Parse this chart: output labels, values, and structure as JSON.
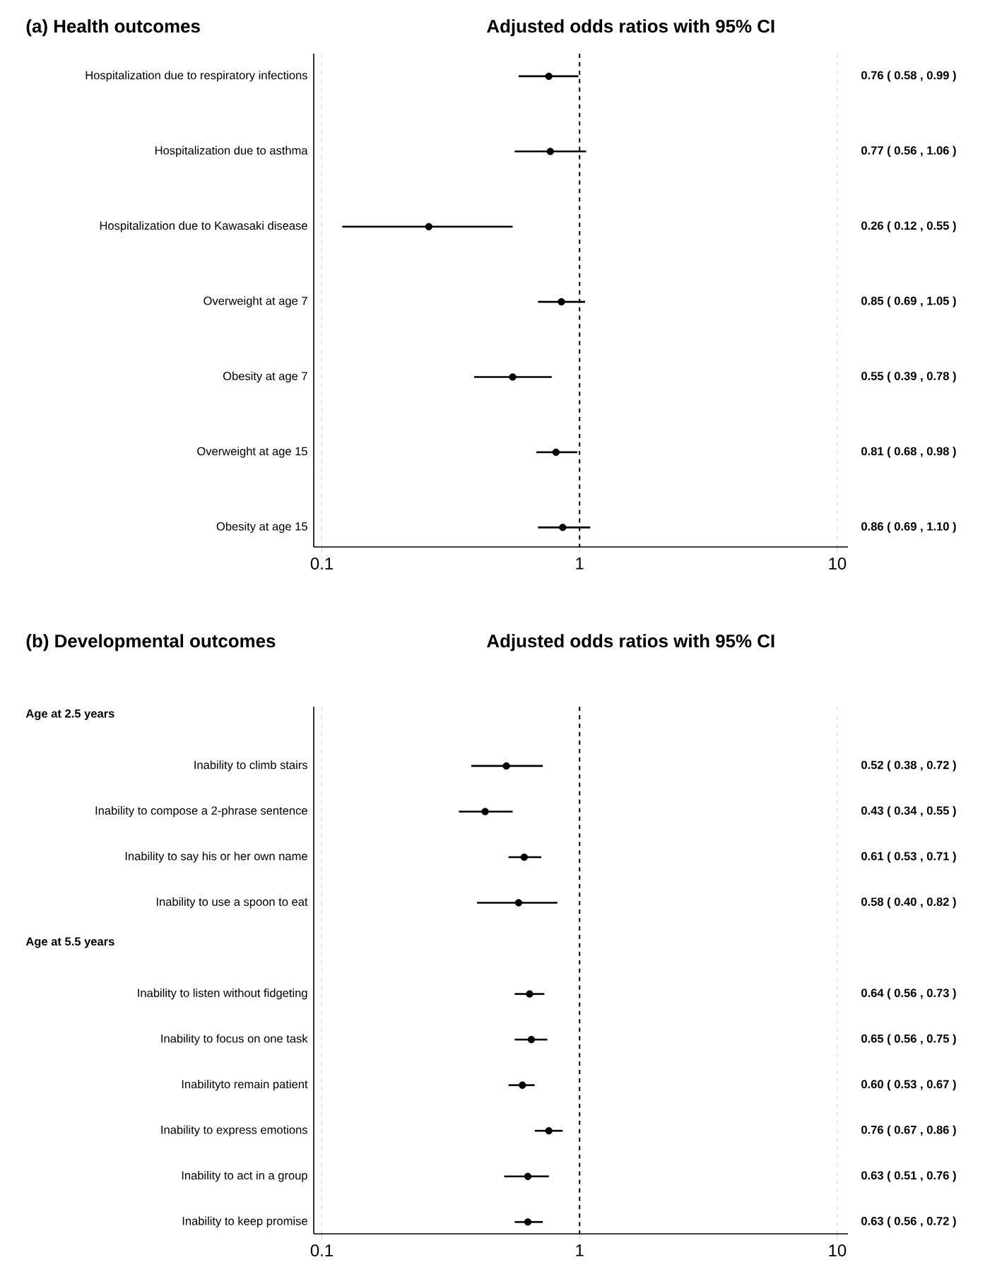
{
  "chart_data": [
    {
      "type": "scatter",
      "orientation": "horizontal",
      "title": "(a) Health outcomes",
      "subtitle": "Adjusted odds ratios with  95% CI",
      "log": "x",
      "xlim": [
        0.093,
        11
      ],
      "xticks": [
        0.1,
        1,
        10
      ],
      "grid": "x",
      "marker": "circle",
      "color": "#000000",
      "ref_lines": [
        {
          "axis": "x",
          "value": 1,
          "line_style": "dashed",
          "color": "#000000"
        }
      ],
      "categories": [
        "Hospitalization due to respiratory infections",
        "Hospitalization due to asthma",
        "Hospitalization due to Kawasaki disease",
        "Overweight at age 7",
        "Obesity at age 7",
        "Overweight at age 15",
        "Obesity at age 15"
      ],
      "values": [
        0.76,
        0.77,
        0.26,
        0.85,
        0.55,
        0.81,
        0.86
      ],
      "errors": [
        [
          0.58,
          0.99
        ],
        [
          0.56,
          1.06
        ],
        [
          0.12,
          0.55
        ],
        [
          0.69,
          1.05
        ],
        [
          0.39,
          0.78
        ],
        [
          0.68,
          0.98
        ],
        [
          0.69,
          1.1
        ]
      ],
      "value_labels": [
        "0.76 ( 0.58 , 0.99 )",
        "0.77 ( 0.56 , 1.06 )",
        "0.26 ( 0.12 , 0.55 )",
        "0.85 ( 0.69 , 1.05 )",
        "0.55 ( 0.39 , 0.78 )",
        "0.81 ( 0.68 , 0.98 )",
        "0.86 ( 0.69 , 1.10 )"
      ]
    },
    {
      "type": "scatter",
      "orientation": "horizontal",
      "title": "(b) Developmental outcomes",
      "subtitle": "Adjusted odds ratios with  95% CI",
      "log": "x",
      "xlim": [
        0.093,
        11
      ],
      "xticks": [
        0.1,
        1,
        10
      ],
      "grid": "x",
      "marker": "circle",
      "color": "#000000",
      "ref_lines": [
        {
          "axis": "x",
          "value": 1,
          "line_style": "dashed",
          "color": "#000000"
        }
      ],
      "annotations": [
        "Age at 2.5 years",
        "Age at 5.5 years"
      ],
      "categories": [
        null,
        "Inability to climb stairs",
        "Inability to compose a 2-phrase sentence",
        "Inability to say his or her own name",
        "Inability to use a spoon to eat",
        null,
        "Inability to listen without fidgeting",
        "Inability to focus on one task",
        "Inabilityto remain patient",
        "Inability to express emotions",
        "Inability to act in a group",
        "Inability to keep promise"
      ],
      "values": [
        null,
        0.52,
        0.43,
        0.61,
        0.58,
        null,
        0.64,
        0.65,
        0.6,
        0.76,
        0.63,
        0.63
      ],
      "errors": [
        null,
        [
          0.38,
          0.72
        ],
        [
          0.34,
          0.55
        ],
        [
          0.53,
          0.71
        ],
        [
          0.4,
          0.82
        ],
        null,
        [
          0.56,
          0.73
        ],
        [
          0.56,
          0.75
        ],
        [
          0.53,
          0.67
        ],
        [
          0.67,
          0.86
        ],
        [
          0.51,
          0.76
        ],
        [
          0.56,
          0.72
        ]
      ],
      "value_labels": [
        null,
        "0.52 ( 0.38 , 0.72 )",
        "0.43 ( 0.34 , 0.55 )",
        "0.61 ( 0.53 , 0.71 )",
        "0.58 ( 0.40 , 0.82 )",
        null,
        "0.64 ( 0.56 , 0.73 )",
        "0.65 ( 0.56 , 0.75 )",
        "0.60 ( 0.53 , 0.67 )",
        "0.76 ( 0.67 , 0.86 )",
        "0.63 ( 0.51 , 0.76 )",
        "0.63 ( 0.56 , 0.72 )"
      ]
    }
  ]
}
